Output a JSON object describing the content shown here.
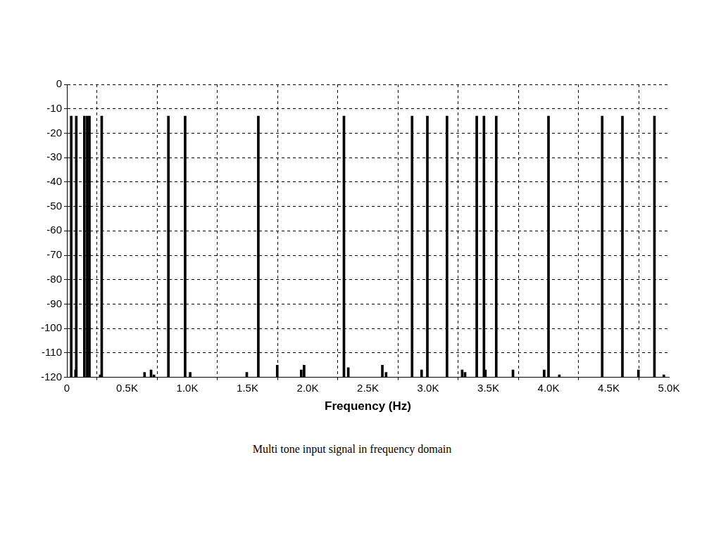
{
  "chart_data": {
    "type": "bar",
    "title": "Multi tone input signal in frequency domain",
    "x_label": "Frequency (Hz)",
    "x": [
      36,
      72,
      78,
      145,
      169,
      187,
      277,
      289,
      645,
      699,
      723,
      843,
      982,
      1024,
      1494,
      1590,
      1747,
      1946,
      1970,
      2301,
      2337,
      2620,
      2651,
      2867,
      2946,
      2994,
      3157,
      3283,
      3307,
      3404,
      3464,
      3476,
      3566,
      3705,
      3964,
      4000,
      4090,
      4446,
      4614,
      4747,
      4880,
      4958
    ],
    "values": [
      -13,
      -117,
      -13,
      -13,
      -13,
      -13,
      -119,
      -13,
      -118,
      -117,
      -119,
      -13,
      -13,
      -118,
      -118,
      -13,
      -115,
      -117,
      -115,
      -13,
      -116,
      -115,
      -118,
      -13,
      -117,
      -13,
      -13,
      -117,
      -118,
      -13,
      -13,
      -117,
      -13,
      -117,
      -117,
      -13,
      -119,
      -13,
      -13,
      -117,
      -13,
      -119
    ],
    "color": "#000000",
    "xlim": [
      0,
      5000
    ],
    "xticks": [
      0,
      {
        "value": 500,
        "label": "0.5K"
      },
      {
        "value": 1000,
        "label": "1.0K"
      },
      {
        "value": 1500,
        "label": "1.5K"
      },
      {
        "value": 2000,
        "label": "2.0K"
      },
      {
        "value": 2500,
        "label": "2.5K"
      },
      {
        "value": 3000,
        "label": "3.0K"
      },
      {
        "value": 3500,
        "label": "3.5K"
      },
      {
        "value": 4000,
        "label": "4.0K"
      },
      {
        "value": 4500,
        "label": "4.5K"
      },
      {
        "value": 5000,
        "label": "5.0K"
      }
    ],
    "ylim": [
      -120,
      0
    ],
    "yticks": [
      -120,
      -110,
      -100,
      -90,
      -80,
      -70,
      -60,
      -50,
      -40,
      -30,
      -20,
      -10,
      0
    ],
    "grid": true
  }
}
